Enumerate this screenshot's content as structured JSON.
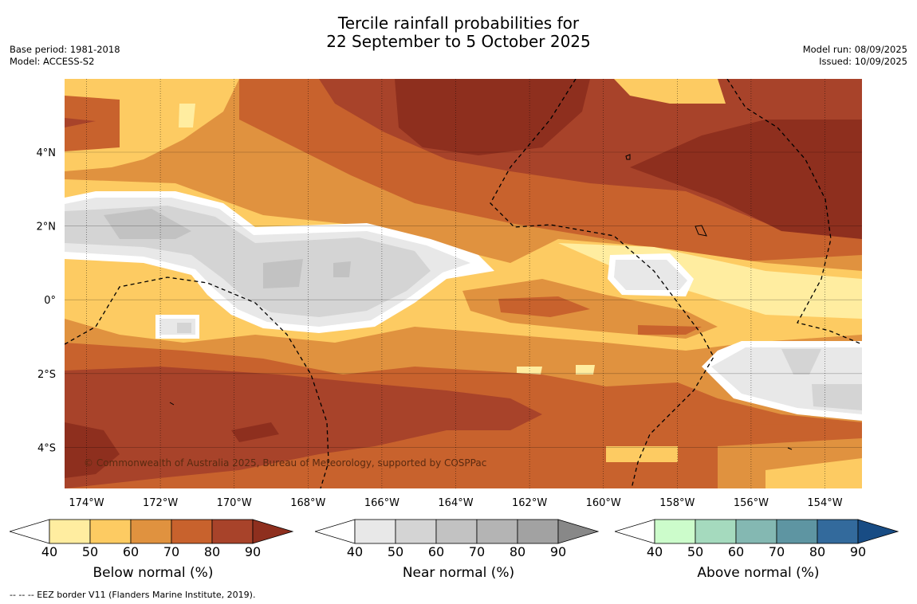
{
  "title_line1": "Tercile rainfall probabilities for",
  "title_line2": "22 September to 5 October 2025",
  "base_period": "Base period: 1981-2018",
  "model": "Model: ACCESS-S2",
  "model_run": "Model run: 08/09/2025",
  "issued": "Issued: 10/09/2025",
  "copyright": "© Commonwealth of Australia 2025, Bureau of Meteorology, supported by COSPPac",
  "lon_labels": [
    "174°W",
    "172°W",
    "170°W",
    "168°W",
    "166°W",
    "164°W",
    "162°W",
    "160°W",
    "158°W",
    "156°W",
    "154°W"
  ],
  "lat_labels": [
    "4°N",
    "2°N",
    "0°",
    "2°S",
    "4°S"
  ],
  "colorbars": [
    {
      "label": "Below normal (%)",
      "ticks": [
        "40",
        "50",
        "60",
        "70",
        "80",
        "90"
      ],
      "colors": [
        "#ffffff",
        "#ffeda0",
        "#fdcb62",
        "#e0923f",
        "#c8622d",
        "#a8432a",
        "#8e2f1e"
      ]
    },
    {
      "label": "Near normal (%)",
      "ticks": [
        "40",
        "50",
        "60",
        "70",
        "80",
        "90"
      ],
      "colors": [
        "#ffffff",
        "#e8e8e8",
        "#d4d4d4",
        "#c2c2c2",
        "#b4b4b4",
        "#a2a2a2",
        "#888888"
      ]
    },
    {
      "label": "Above normal (%)",
      "ticks": [
        "40",
        "50",
        "60",
        "70",
        "80",
        "90"
      ],
      "colors": [
        "#ffffff",
        "#ccfccb",
        "#a5dabe",
        "#84b8b2",
        "#5e95a2",
        "#336a9c",
        "#184c84"
      ]
    }
  ],
  "footnote": "--  --  -- EEZ border V11 (Flanders Marine Institute, 2019)."
}
